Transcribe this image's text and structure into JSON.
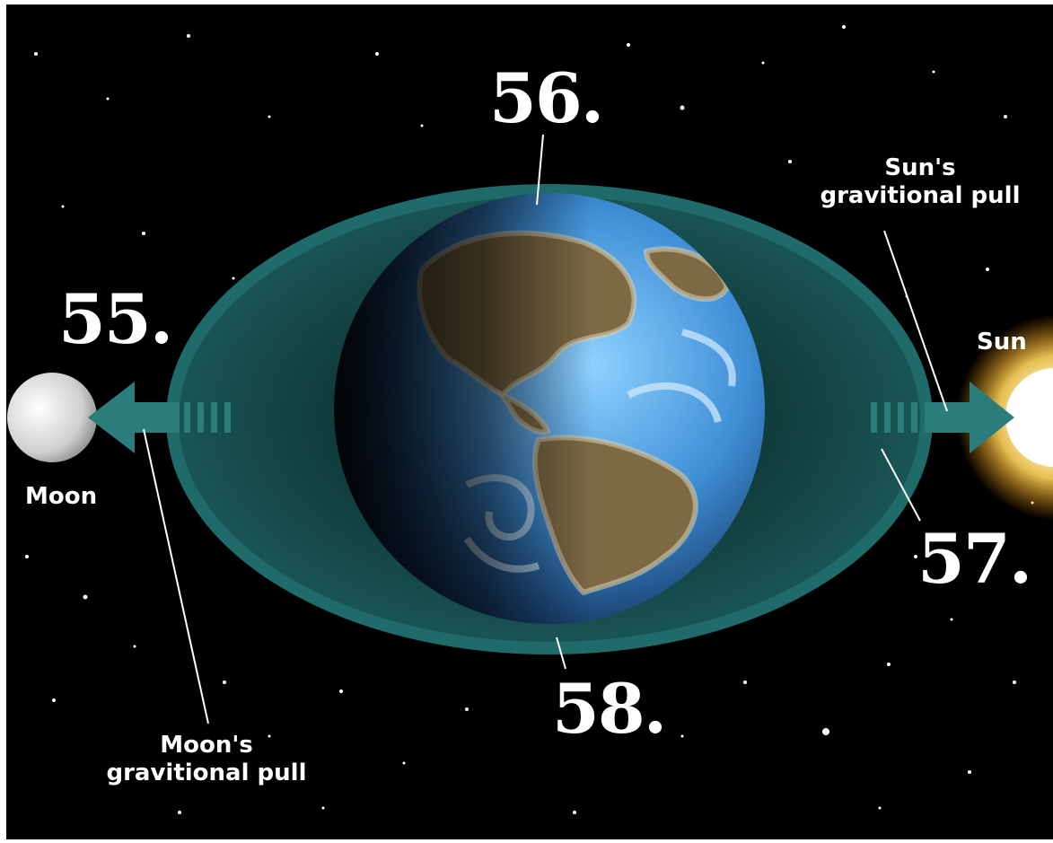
{
  "labels": {
    "n55": "55.",
    "n56": "56.",
    "n57": "57.",
    "n58": "58.",
    "moon": "Moon",
    "sun": "Sun",
    "moon_pull": [
      "Moon's",
      "gravitional pull"
    ],
    "sun_pull": [
      "Sun's",
      "gravitional pull"
    ]
  },
  "colors": {
    "space": "#000000",
    "ring": "#1f6b6a",
    "arrow": "#2a7d7b",
    "ocean": "#3f8fd6",
    "land": "#8a6a45",
    "sun": "#fff6c8",
    "moon": "#d9d9d9"
  },
  "icons": {
    "earth": "earth-globe-icon",
    "moon": "moon-icon",
    "sun": "sun-icon"
  }
}
